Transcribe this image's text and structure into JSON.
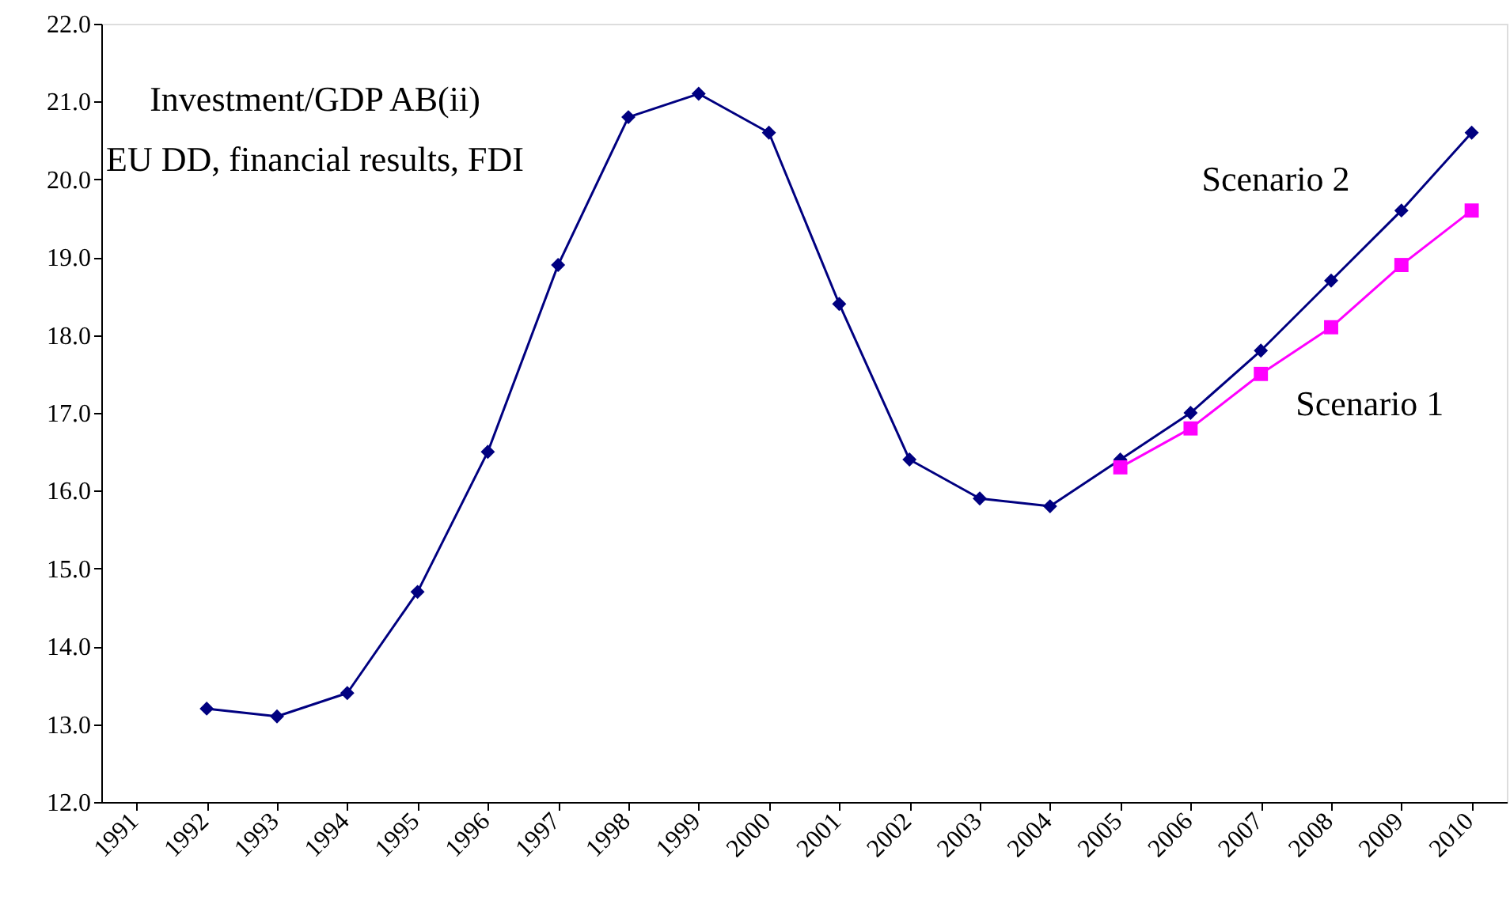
{
  "chart_data": {
    "type": "line",
    "title": "Investment/GDP AB(ii)",
    "subtitle": "EU DD, financial results, FDI",
    "categories": [
      "1991",
      "1992",
      "1993",
      "1994",
      "1995",
      "1996",
      "1997",
      "1998",
      "1999",
      "2000",
      "2001",
      "2002",
      "2003",
      "2004",
      "2005",
      "2006",
      "2007",
      "2008",
      "2009",
      "2010"
    ],
    "series": [
      {
        "name": "Scenario 2",
        "color": "#000080",
        "marker": "diamond",
        "values": [
          null,
          13.2,
          13.1,
          13.4,
          14.7,
          16.5,
          18.9,
          20.8,
          21.1,
          20.6,
          18.4,
          16.4,
          15.9,
          15.8,
          16.4,
          17.0,
          17.8,
          18.7,
          19.6,
          20.6
        ]
      },
      {
        "name": "Scenario 1",
        "color": "#ff00ff",
        "marker": "square",
        "values": [
          null,
          null,
          null,
          null,
          null,
          null,
          null,
          null,
          null,
          null,
          null,
          null,
          null,
          null,
          16.3,
          16.8,
          17.5,
          18.1,
          18.9,
          19.6
        ]
      }
    ],
    "ylim": [
      12,
      22
    ],
    "yticks": [
      {
        "value": 12,
        "label": "12.0"
      },
      {
        "value": 13,
        "label": "13.0"
      },
      {
        "value": 14,
        "label": "14.0"
      },
      {
        "value": 15,
        "label": "15.0"
      },
      {
        "value": 16,
        "label": "16.0"
      },
      {
        "value": 17,
        "label": "17.0"
      },
      {
        "value": 18,
        "label": "18.0"
      },
      {
        "value": 19,
        "label": "19.0"
      },
      {
        "value": 20,
        "label": "20.0"
      },
      {
        "value": 21,
        "label": "21.0"
      },
      {
        "value": 22,
        "label": "22.0"
      }
    ],
    "line_style": "solid"
  }
}
